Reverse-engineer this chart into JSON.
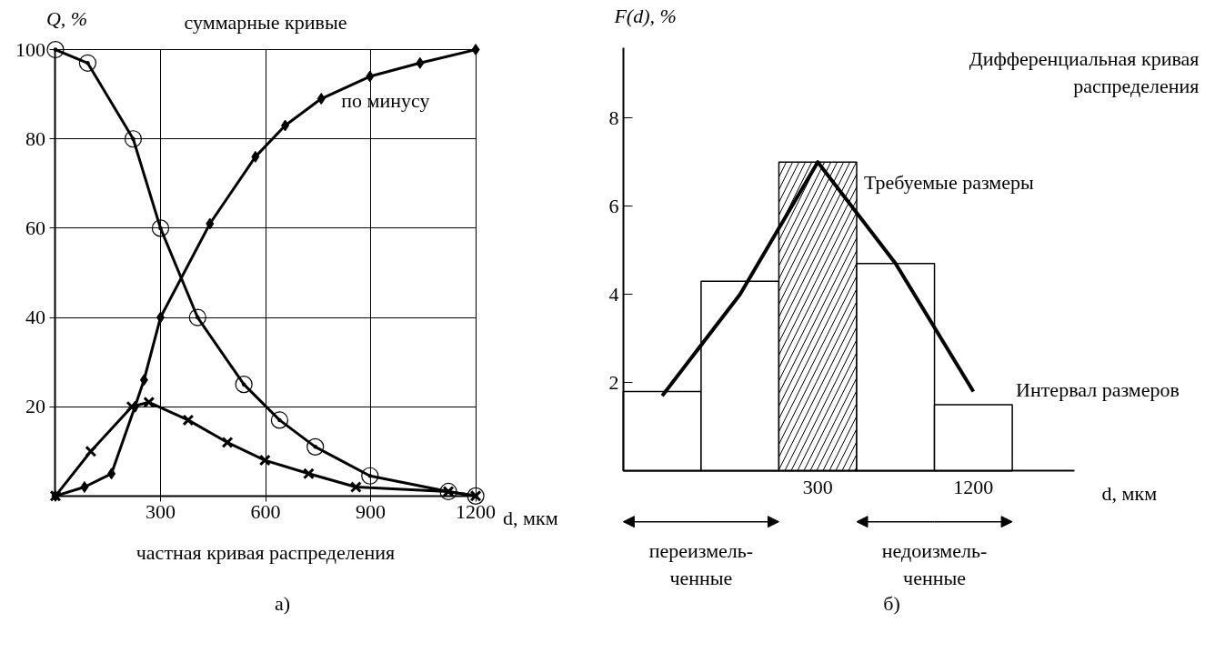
{
  "chart_data": [
    {
      "type": "line",
      "title": "а)",
      "annotations": [
        "суммарные кривые"
      ],
      "xlabel": "d, мкм",
      "ylabel": "Q, %",
      "xlim": [
        0,
        1200
      ],
      "ylim": [
        0,
        100
      ],
      "xticks": [
        300,
        600,
        900,
        1200
      ],
      "yticks": [
        20,
        40,
        60,
        80,
        100
      ],
      "grid": true,
      "series": [
        {
          "color": "#000000",
          "marker": "circle",
          "x": [
            0,
            92,
            222,
            300,
            406,
            538,
            640,
            742,
            898,
            1122,
            1200
          ],
          "values": [
            100,
            97,
            80,
            60,
            40,
            25,
            17,
            11,
            4.5,
            1,
            0
          ]
        },
        {
          "name": "по минусу",
          "color": "#000000",
          "marker": "diamond",
          "x": [
            0,
            83,
            160,
            227,
            253,
            300,
            441,
            571,
            656,
            759,
            898,
            1041,
            1200
          ],
          "values": [
            0,
            2,
            5,
            20,
            26,
            40,
            61,
            76,
            83,
            89,
            94,
            97,
            100
          ]
        },
        {
          "name": "частная кривая распределения",
          "color": "#000000",
          "marker": "cross",
          "x": [
            0,
            101,
            218,
            267,
            379,
            491,
            598,
            723,
            858,
            1122,
            1200
          ],
          "values": [
            0,
            10,
            20,
            21,
            17,
            12,
            8,
            5,
            2,
            1,
            0
          ]
        }
      ]
    },
    {
      "type": "bar",
      "title": "б)",
      "xlabel": "d, мкм",
      "ylabel": "F(d), %",
      "categories": [
        null,
        null,
        "300",
        null,
        "1200"
      ],
      "ylim": [
        0,
        9.6
      ],
      "yticks": [
        2,
        4,
        6,
        8
      ],
      "grid": false,
      "annotations": [
        {
          "text": "Требуемые размеры",
          "x": "300",
          "y": 7.0
        },
        {
          "text": "Интервал размеров",
          "x": "1200",
          "y": 1.5
        },
        "переизмель-\nченные",
        "недоизмель-\nченные"
      ],
      "series": [
        {
          "type": "bar",
          "color": "#ffffff",
          "values": [
            1.8,
            4.3,
            7.0,
            4.7,
            1.5
          ]
        },
        {
          "type": "line",
          "name": "Дифференциальная кривая\nраспределения",
          "color": "#000000",
          "values": [
            1.7,
            4.0,
            7.0,
            4.7,
            1.8
          ]
        }
      ]
    }
  ]
}
